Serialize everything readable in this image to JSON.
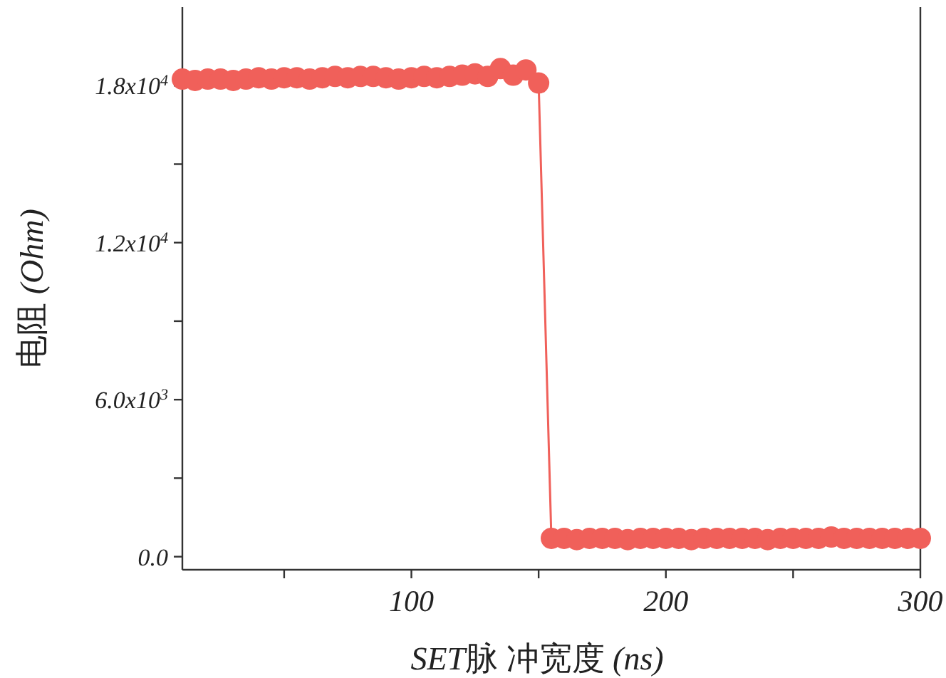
{
  "chart_data": {
    "type": "line",
    "xlabel": "SET脉 冲宽度 (ns)",
    "ylabel": "电阻 (Ohm)",
    "x": [
      10,
      15,
      20,
      25,
      30,
      35,
      40,
      45,
      50,
      55,
      60,
      65,
      70,
      75,
      80,
      85,
      90,
      95,
      100,
      105,
      110,
      115,
      120,
      125,
      130,
      135,
      140,
      145,
      150,
      155,
      160,
      165,
      170,
      175,
      180,
      185,
      190,
      195,
      200,
      205,
      210,
      215,
      220,
      225,
      230,
      235,
      240,
      245,
      250,
      255,
      260,
      265,
      270,
      275,
      280,
      285,
      290,
      295,
      300
    ],
    "series": [
      {
        "color": "#f0605a",
        "values": [
          18250,
          18200,
          18250,
          18250,
          18200,
          18250,
          18300,
          18250,
          18300,
          18300,
          18250,
          18300,
          18350,
          18300,
          18350,
          18350,
          18300,
          18250,
          18300,
          18350,
          18300,
          18350,
          18400,
          18450,
          18350,
          18650,
          18400,
          18600,
          18100,
          700,
          700,
          650,
          700,
          700,
          700,
          650,
          700,
          700,
          700,
          700,
          650,
          700,
          700,
          700,
          700,
          700,
          650,
          700,
          700,
          700,
          700,
          750,
          700,
          700,
          700,
          700,
          700,
          700,
          700
        ]
      }
    ],
    "xlim": [
      10,
      300
    ],
    "ylim": [
      -500,
      21000
    ],
    "xticks": [
      {
        "value": 50,
        "label": null
      },
      100,
      {
        "value": 150,
        "label": null
      },
      200,
      {
        "value": 250,
        "label": null
      },
      300
    ],
    "yticks": [
      {
        "value": 0,
        "label": "0.0"
      },
      {
        "value": 3000,
        "label": null
      },
      {
        "value": 6000,
        "label": "6.0x10$^{3}$"
      },
      {
        "value": 9000,
        "label": null
      },
      {
        "value": 12000,
        "label": "1.2x10$^{4}$"
      },
      {
        "value": 15000,
        "label": null
      },
      {
        "value": 18000,
        "label": "1.8x10$^{4}$"
      }
    ],
    "marker": "circle",
    "line_style": "solid",
    "grid": false
  }
}
